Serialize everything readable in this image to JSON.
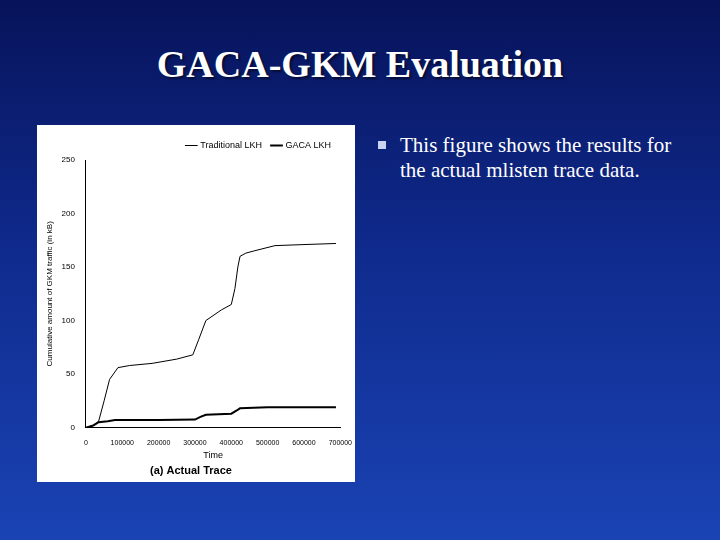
{
  "slide": {
    "title": "GACA-GKM Evaluation",
    "bullets": [
      "This figure shows the results for the actual mlisten trace data."
    ]
  },
  "chart_data": {
    "type": "line",
    "caption": "(a) Actual Trace",
    "x_label": "Time",
    "y_label": "Cumulative amount of GKM traffic (in kB)",
    "series": [
      {
        "name": "Traditional LKH",
        "color": "#000000",
        "x": [
          0,
          20000,
          35000,
          50000,
          65000,
          88000,
          120000,
          182000,
          250000,
          294000,
          310000,
          330000,
          373000,
          400000,
          410000,
          418000,
          424000,
          440000,
          462000,
          520000,
          600000,
          688000
        ],
        "values": [
          0,
          2,
          6,
          25,
          45,
          56,
          58,
          60,
          64,
          68,
          82,
          100,
          110,
          115,
          130,
          150,
          160,
          163,
          165,
          170,
          171,
          172
        ]
      },
      {
        "name": "GACA LKH",
        "color": "#000000",
        "x": [
          0,
          20000,
          35000,
          60000,
          80000,
          200000,
          300000,
          315000,
          330000,
          400000,
          415000,
          424000,
          500000,
          600000,
          688000
        ],
        "values": [
          0,
          2,
          5,
          6,
          7,
          7,
          7.5,
          10,
          12,
          13,
          16,
          18,
          19,
          19,
          19
        ]
      }
    ],
    "xlim": [
      0,
      700000
    ],
    "xticks": [
      0,
      100000,
      200000,
      300000,
      400000,
      500000,
      600000,
      700000
    ],
    "ylim": [
      0,
      250
    ],
    "yticks": [
      0,
      50,
      100,
      150,
      200,
      250
    ],
    "grid": false,
    "legend": "top-right"
  }
}
